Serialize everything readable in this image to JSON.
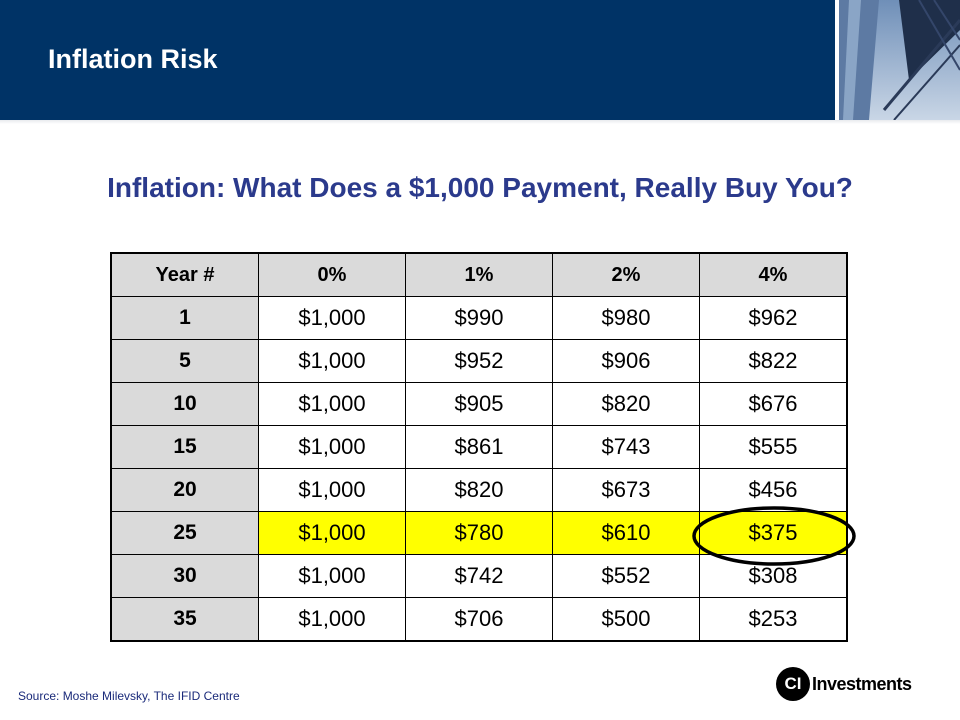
{
  "header": {
    "title": "Inflation Risk"
  },
  "subtitle": "Inflation: What Does a $1,000 Payment, Really Buy You?",
  "table": {
    "columns": [
      "Year #",
      "0%",
      "1%",
      "2%",
      "4%"
    ],
    "rows": [
      {
        "year": "1",
        "values": [
          "$1,000",
          "$990",
          "$980",
          "$962"
        ]
      },
      {
        "year": "5",
        "values": [
          "$1,000",
          "$952",
          "$906",
          "$822"
        ]
      },
      {
        "year": "10",
        "values": [
          "$1,000",
          "$905",
          "$820",
          "$676"
        ]
      },
      {
        "year": "15",
        "values": [
          "$1,000",
          "$861",
          "$743",
          "$555"
        ]
      },
      {
        "year": "20",
        "values": [
          "$1,000",
          "$820",
          "$673",
          "$456"
        ]
      },
      {
        "year": "25",
        "values": [
          "$1,000",
          "$780",
          "$610",
          "$375"
        ],
        "highlighted": true
      },
      {
        "year": "30",
        "values": [
          "$1,000",
          "$742",
          "$552",
          "$308"
        ]
      },
      {
        "year": "35",
        "values": [
          "$1,000",
          "$706",
          "$500",
          "$253"
        ]
      }
    ],
    "highlight_color": "#ffff00",
    "circled_value": "$375"
  },
  "source": "Source: Moshe Milevsky, The IFID Centre",
  "logo": {
    "mark": "CI",
    "text": "Investments"
  },
  "colors": {
    "header_background": "#003366",
    "subtitle_text": "#2b3a8c",
    "header_cell_background": "#dadada"
  }
}
